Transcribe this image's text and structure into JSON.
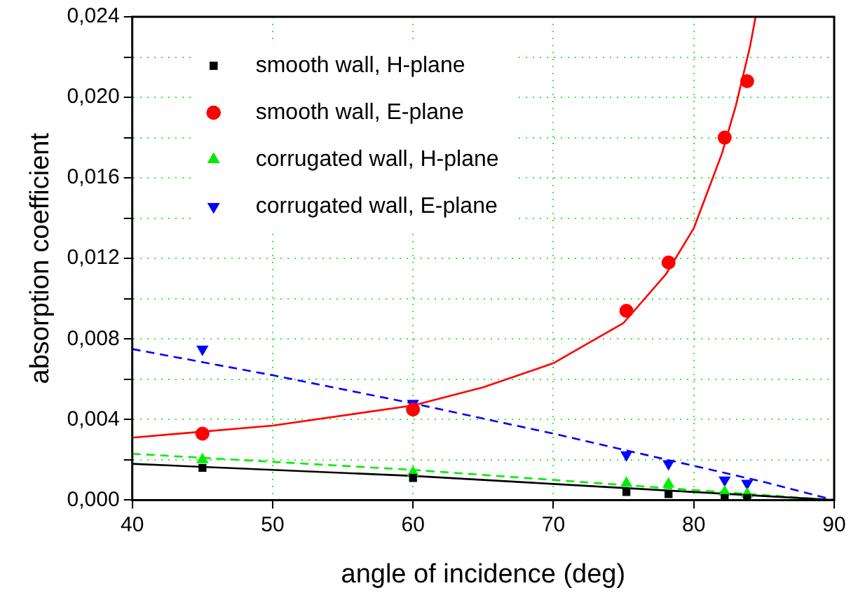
{
  "chart_data": {
    "type": "scatter",
    "xlabel": "angle of incidence (deg)",
    "ylabel": "absorption coefficient",
    "xlim": [
      40,
      90
    ],
    "xticks": [
      40,
      50,
      60,
      70,
      80,
      90
    ],
    "ylim": [
      0,
      0.024
    ],
    "yticks": [
      {
        "value": 0,
        "label": "0,000"
      },
      {
        "value": 0.002,
        "label": null
      },
      {
        "value": 0.004,
        "label": "0,004"
      },
      {
        "value": 0.006,
        "label": null
      },
      {
        "value": 0.008,
        "label": "0,008"
      },
      {
        "value": 0.01,
        "label": null
      },
      {
        "value": 0.012,
        "label": "0,012"
      },
      {
        "value": 0.014,
        "label": null
      },
      {
        "value": 0.016,
        "label": "0,016"
      },
      {
        "value": 0.018,
        "label": null
      },
      {
        "value": 0.02,
        "label": "0,020"
      },
      {
        "value": 0.022,
        "label": null
      },
      {
        "value": 0.024,
        "label": "0,024"
      }
    ],
    "grid": true,
    "legend": "top left",
    "series": [
      {
        "name": "smooth wall, H-plane",
        "marker": "square",
        "color": "#000000",
        "x": [
          45,
          60,
          75.2,
          78.2,
          82.2,
          83.8
        ],
        "values": [
          0.0016,
          0.0011,
          0.0004,
          0.0003,
          0.0001,
          0.0001
        ]
      },
      {
        "name": "smooth wall, E-plane",
        "marker": "circle",
        "color": "#ff0000",
        "x": [
          45,
          60,
          75.2,
          78.2,
          82.2,
          83.8
        ],
        "values": [
          0.0033,
          0.0045,
          0.0094,
          0.0118,
          0.018,
          0.0208
        ]
      },
      {
        "name": "corrugated wall, H-plane",
        "marker": "triangle",
        "color": "#00ee00",
        "x": [
          45,
          60,
          75.2,
          78.2,
          82.2,
          83.8
        ],
        "values": [
          0.002,
          0.00136,
          0.00083,
          0.0008,
          0.0004,
          0.0003
        ]
      },
      {
        "name": "corrugated wall, E-plane",
        "marker": "triangle_down",
        "color": "#0000ff",
        "x": [
          45,
          60,
          75.2,
          78.2,
          82.2,
          83.8
        ],
        "values": [
          0.0075,
          0.0048,
          0.00225,
          0.0018,
          0.001,
          0.00083
        ]
      },
      {
        "type": "line",
        "marker": "none",
        "line_style": "solid",
        "color": "#000000",
        "x": [
          40,
          50,
          60,
          70,
          80,
          90
        ],
        "values": [
          0.0018,
          0.0015,
          0.0012,
          0.0008,
          0.0004,
          0
        ]
      },
      {
        "type": "line",
        "marker": "none",
        "line_style": "solid",
        "color": "#ff0000",
        "x": [
          40,
          50,
          60,
          65,
          70,
          75,
          78,
          80,
          82,
          83,
          84,
          84.4
        ],
        "values": [
          0.0031,
          0.0037,
          0.0047,
          0.0056,
          0.0068,
          0.0088,
          0.0112,
          0.0135,
          0.0172,
          0.0196,
          0.0225,
          0.024
        ]
      },
      {
        "type": "line",
        "marker": "none",
        "line_style": "dashed",
        "color": "#00ee00",
        "x": [
          40,
          50,
          60,
          70,
          80,
          90
        ],
        "values": [
          0.0023,
          0.0019,
          0.0015,
          0.001,
          0.0005,
          0
        ]
      },
      {
        "type": "line",
        "marker": "none",
        "line_style": "dashed",
        "color": "#0000ff",
        "x": [
          40,
          50,
          60,
          70,
          75,
          80,
          85,
          90
        ],
        "values": [
          0.0075,
          0.0062,
          0.0048,
          0.0033,
          0.0025,
          0.0017,
          0.0009,
          0
        ]
      }
    ]
  }
}
